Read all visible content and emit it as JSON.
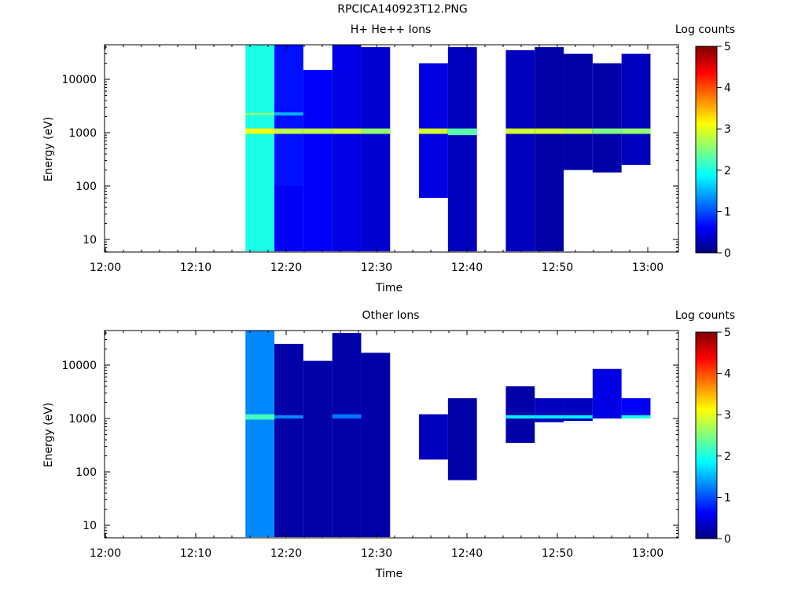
{
  "page": {
    "title": "RPCICA140923T12.PNG"
  },
  "colors": {
    "frame": "#000000",
    "background": "#ffffff"
  },
  "colorbar": {
    "label": "Log counts",
    "ticks": [
      "0",
      "1",
      "2",
      "3",
      "4",
      "5"
    ],
    "colormap": [
      "#00007f",
      "#0000ff",
      "#007fff",
      "#00ffff",
      "#7fff7f",
      "#ffff00",
      "#ff7f00",
      "#ff0000",
      "#7f0000"
    ]
  },
  "chart_data": [
    {
      "type": "heatmap",
      "title": "H+ He++ Ions",
      "xlabel": "Time",
      "ylabel": "Energy (eV)",
      "xticks": [
        "12:00",
        "12:10",
        "12:20",
        "12:30",
        "12:40",
        "12:50",
        "13:00"
      ],
      "yticks": [
        "10",
        "100",
        "1000",
        "10000"
      ],
      "yscale": "log",
      "ylim": [
        6,
        45000
      ],
      "xlim_minutes": [
        0,
        63
      ],
      "colorbar_range": [
        0,
        5
      ],
      "cells": [
        {
          "t": [
            15.5,
            18.7
          ],
          "e": [
            6,
            45000
          ],
          "v": 2.0
        },
        {
          "t": [
            15.5,
            18.7
          ],
          "e": [
            2150,
            2350
          ],
          "v": 2.6
        },
        {
          "t": [
            15.5,
            18.7
          ],
          "e": [
            950,
            1200
          ],
          "v": 3.1
        },
        {
          "t": [
            18.7,
            21.9
          ],
          "e": [
            6,
            100
          ],
          "v": 0.6
        },
        {
          "t": [
            18.7,
            21.9
          ],
          "e": [
            100,
            45000
          ],
          "v": 0.7
        },
        {
          "t": [
            18.7,
            21.9
          ],
          "e": [
            950,
            1200
          ],
          "v": 2.8
        },
        {
          "t": [
            18.7,
            21.9
          ],
          "e": [
            2100,
            2400
          ],
          "v": 1.5
        },
        {
          "t": [
            21.9,
            25.1
          ],
          "e": [
            6,
            15000
          ],
          "v": 0.6
        },
        {
          "t": [
            21.9,
            25.1
          ],
          "e": [
            950,
            1200
          ],
          "v": 2.8
        },
        {
          "t": [
            25.1,
            28.3
          ],
          "e": [
            6,
            45000
          ],
          "v": 0.5
        },
        {
          "t": [
            25.1,
            28.3
          ],
          "e": [
            950,
            1200
          ],
          "v": 2.9
        },
        {
          "t": [
            28.3,
            31.5
          ],
          "e": [
            6,
            40000
          ],
          "v": 0.4
        },
        {
          "t": [
            28.3,
            31.5
          ],
          "e": [
            950,
            1200
          ],
          "v": 2.6
        },
        {
          "t": [
            34.7,
            37.9
          ],
          "e": [
            60,
            20000
          ],
          "v": 0.5
        },
        {
          "t": [
            34.7,
            37.9
          ],
          "e": [
            950,
            1200
          ],
          "v": 2.9
        },
        {
          "t": [
            37.9,
            41.1
          ],
          "e": [
            6,
            40000
          ],
          "v": 0.3
        },
        {
          "t": [
            37.9,
            41.1
          ],
          "e": [
            900,
            1200
          ],
          "v": 2.3
        },
        {
          "t": [
            44.3,
            47.5
          ],
          "e": [
            6,
            35000
          ],
          "v": 0.3
        },
        {
          "t": [
            44.3,
            47.5
          ],
          "e": [
            950,
            1200
          ],
          "v": 2.9
        },
        {
          "t": [
            47.5,
            50.7
          ],
          "e": [
            6,
            40000
          ],
          "v": 0.2
        },
        {
          "t": [
            47.5,
            50.7
          ],
          "e": [
            950,
            1200
          ],
          "v": 2.9
        },
        {
          "t": [
            50.7,
            53.9
          ],
          "e": [
            200,
            30000
          ],
          "v": 0.2
        },
        {
          "t": [
            50.7,
            53.9
          ],
          "e": [
            950,
            1200
          ],
          "v": 2.8
        },
        {
          "t": [
            53.9,
            57.1
          ],
          "e": [
            180,
            20000
          ],
          "v": 0.2
        },
        {
          "t": [
            53.9,
            57.1
          ],
          "e": [
            950,
            1200
          ],
          "v": 2.5
        },
        {
          "t": [
            57.1,
            60.3
          ],
          "e": [
            250,
            30000
          ],
          "v": 0.3
        },
        {
          "t": [
            57.1,
            60.3
          ],
          "e": [
            950,
            1200
          ],
          "v": 2.6
        }
      ]
    },
    {
      "type": "heatmap",
      "title": "Other Ions",
      "xlabel": "Time",
      "ylabel": "Energy (eV)",
      "xticks": [
        "12:00",
        "12:10",
        "12:20",
        "12:30",
        "12:40",
        "12:50",
        "13:00"
      ],
      "yticks": [
        "10",
        "100",
        "1000",
        "10000"
      ],
      "yscale": "log",
      "ylim": [
        6,
        45000
      ],
      "xlim_minutes": [
        0,
        63
      ],
      "colorbar_range": [
        0,
        5
      ],
      "cells": [
        {
          "t": [
            15.5,
            18.7
          ],
          "e": [
            6,
            45000
          ],
          "v": 1.3
        },
        {
          "t": [
            15.5,
            18.7
          ],
          "e": [
            950,
            1200
          ],
          "v": 2.2
        },
        {
          "t": [
            18.7,
            21.9
          ],
          "e": [
            6,
            25000
          ],
          "v": 0.2
        },
        {
          "t": [
            18.7,
            21.9
          ],
          "e": [
            1000,
            1150
          ],
          "v": 1.3
        },
        {
          "t": [
            21.9,
            25.1
          ],
          "e": [
            6,
            12000
          ],
          "v": 0.2
        },
        {
          "t": [
            25.1,
            28.3
          ],
          "e": [
            6,
            40000
          ],
          "v": 0.2
        },
        {
          "t": [
            25.1,
            28.3
          ],
          "e": [
            1000,
            1200
          ],
          "v": 1.2
        },
        {
          "t": [
            28.3,
            31.5
          ],
          "e": [
            6,
            17000
          ],
          "v": 0.2
        },
        {
          "t": [
            34.7,
            37.9
          ],
          "e": [
            170,
            1200
          ],
          "v": 0.3
        },
        {
          "t": [
            37.9,
            41.1
          ],
          "e": [
            70,
            2400
          ],
          "v": 0.2
        },
        {
          "t": [
            44.3,
            47.5
          ],
          "e": [
            350,
            4000
          ],
          "v": 0.2
        },
        {
          "t": [
            44.3,
            47.5
          ],
          "e": [
            1000,
            1150
          ],
          "v": 1.8
        },
        {
          "t": [
            47.5,
            50.7
          ],
          "e": [
            850,
            2400
          ],
          "v": 0.3
        },
        {
          "t": [
            47.5,
            50.7
          ],
          "e": [
            1000,
            1150
          ],
          "v": 1.8
        },
        {
          "t": [
            50.7,
            53.9
          ],
          "e": [
            900,
            2400
          ],
          "v": 0.3
        },
        {
          "t": [
            50.7,
            53.9
          ],
          "e": [
            1000,
            1150
          ],
          "v": 1.8
        },
        {
          "t": [
            53.9,
            57.1
          ],
          "e": [
            1000,
            8500
          ],
          "v": 0.5
        },
        {
          "t": [
            57.1,
            60.3
          ],
          "e": [
            1000,
            2400
          ],
          "v": 0.6
        },
        {
          "t": [
            57.1,
            60.3
          ],
          "e": [
            1000,
            1150
          ],
          "v": 2.0
        }
      ]
    }
  ]
}
